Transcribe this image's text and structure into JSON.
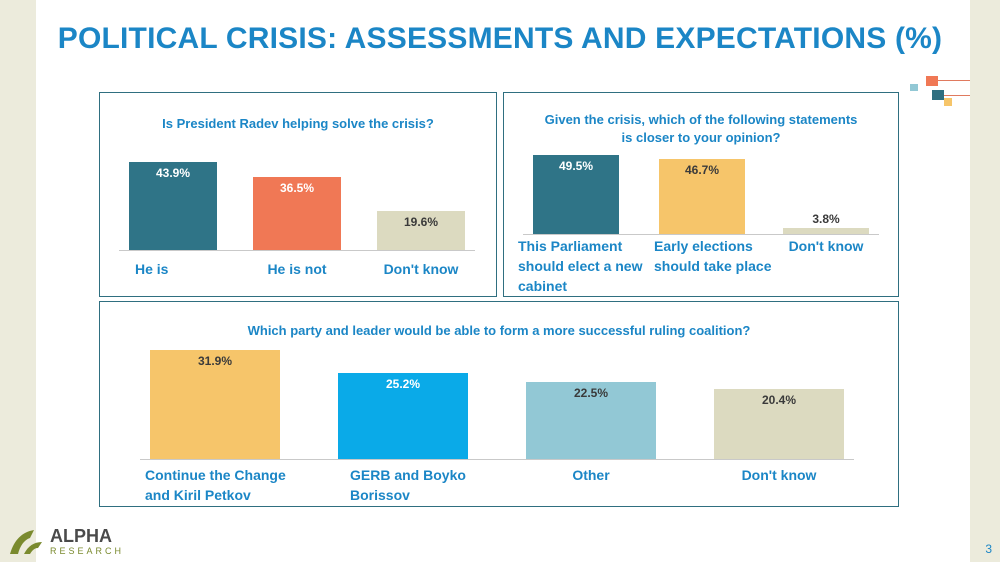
{
  "slide": {
    "title": "POLITICAL CRISIS: ASSESSMENTS AND EXPECTATIONS (%)",
    "page_number": "3",
    "logo_text": "ALPHA RESEARCH",
    "accent_color": "#1b86c6"
  },
  "chart_data": [
    {
      "type": "bar",
      "title": "Is President Radev helping solve the crisis?",
      "categories": [
        "He is",
        "He is not",
        "Don't know"
      ],
      "values": [
        43.9,
        36.5,
        19.6
      ],
      "value_labels": [
        "43.9%",
        "36.5%",
        "19.6%"
      ],
      "colors": [
        "#2f7487",
        "#f07855",
        "#dcdac0"
      ],
      "ylim": [
        0,
        50
      ],
      "grid": false,
      "legend": "none"
    },
    {
      "type": "bar",
      "title": "Given the crisis, which of the following statements is closer to your opinion?",
      "categories": [
        "This Parliament should elect a new cabinet",
        "Early elections should take place",
        "Don't know"
      ],
      "values": [
        49.5,
        46.7,
        3.8
      ],
      "value_labels": [
        "49.5%",
        "46.7%",
        "3.8%"
      ],
      "colors": [
        "#2f7487",
        "#f6c56a",
        "#dcdac0"
      ],
      "ylim": [
        0,
        50
      ],
      "grid": false,
      "legend": "none"
    },
    {
      "type": "bar",
      "title": "Which party and leader would be able to form a more successful ruling coalition?",
      "categories": [
        "Continue the Change and Kiril Petkov",
        "GERB and Boyko Borissov",
        "Other",
        "Don't know"
      ],
      "values": [
        31.9,
        25.2,
        22.5,
        20.4
      ],
      "value_labels": [
        "31.9%",
        "25.2%",
        "22.5%",
        "20.4%"
      ],
      "colors": [
        "#f6c56a",
        "#0aaae8",
        "#92c8d5",
        "#dcdac0"
      ],
      "ylim": [
        0,
        35
      ],
      "grid": false,
      "legend": "none"
    }
  ]
}
